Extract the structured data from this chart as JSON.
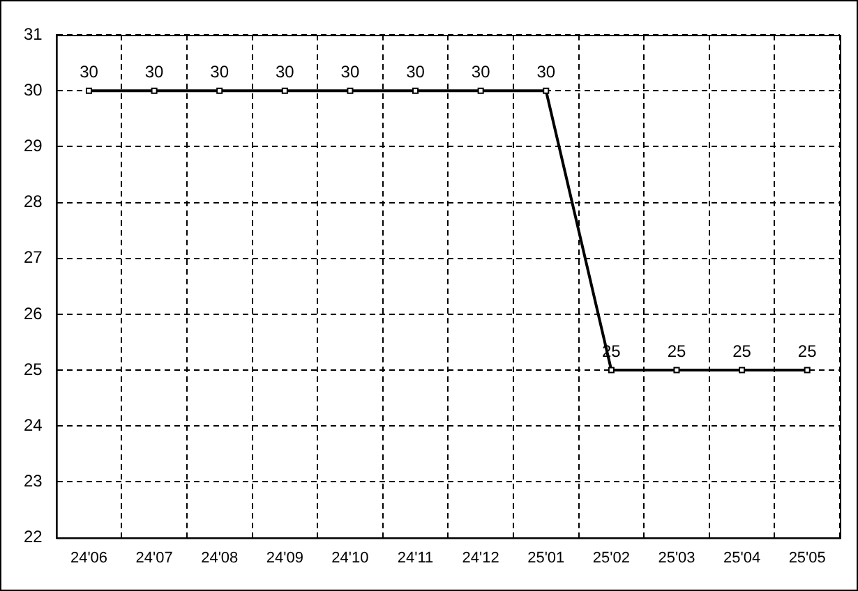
{
  "chart_data": {
    "type": "line",
    "categories": [
      "24'06",
      "24'07",
      "24'08",
      "24'09",
      "24'10",
      "24'11",
      "24'12",
      "25'01",
      "25'02",
      "25'03",
      "25'04",
      "25'05"
    ],
    "series": [
      {
        "color": "#000000",
        "values": [
          30,
          30,
          30,
          30,
          30,
          30,
          30,
          30,
          25,
          25,
          25,
          25
        ]
      }
    ],
    "ylim": [
      22,
      31
    ],
    "yticks": [
      22,
      23,
      24,
      25,
      26,
      27,
      28,
      29,
      30,
      31
    ],
    "grid": true,
    "legend": false,
    "marker": "square",
    "line_style": "solid",
    "data_labels": true
  }
}
